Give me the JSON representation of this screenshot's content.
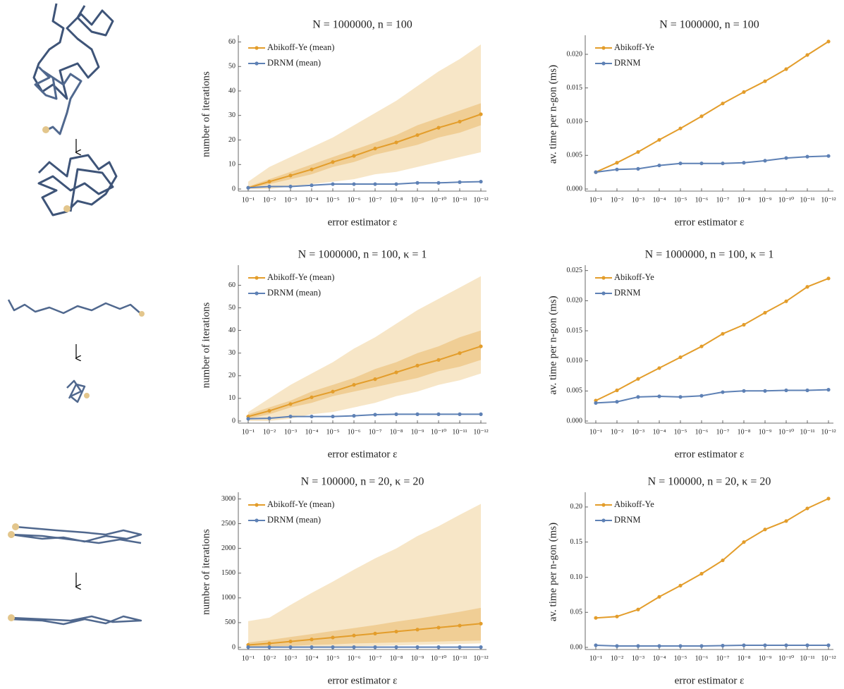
{
  "chart_data": [
    {
      "type": "line",
      "title": "N = 1000000,  n = 100",
      "xlabel": "error estimator ε",
      "ylabel": "number of iterations",
      "legend": "upper left",
      "categories": [
        "10⁻¹",
        "10⁻²",
        "10⁻³",
        "10⁻⁴",
        "10⁻⁵",
        "10⁻⁶",
        "10⁻⁷",
        "10⁻⁸",
        "10⁻⁹",
        "10⁻¹⁰",
        "10⁻¹¹",
        "10⁻¹²"
      ],
      "ylim": [
        0,
        61
      ],
      "yticks": [
        0,
        10,
        20,
        30,
        40,
        50,
        60
      ],
      "series": [
        {
          "name": "Abikoff-Ye (mean)",
          "color": "#e39d2b",
          "values": [
            0.5,
            3,
            5.5,
            8,
            11,
            13.5,
            16.5,
            19,
            22,
            25,
            27.5,
            30.5
          ],
          "bands": [
            {
              "color": "#f6e2bd",
              "lower": [
                0,
                0,
                1,
                2,
                3,
                4,
                6,
                7,
                9,
                11,
                13,
                15
              ],
              "upper": [
                3,
                9,
                13,
                17,
                21,
                26,
                31,
                36,
                42,
                48,
                53,
                59
              ]
            },
            {
              "color": "#eec98c",
              "lower": [
                0,
                2,
                4,
                6,
                9,
                11,
                14,
                16,
                18,
                21,
                23,
                26
              ],
              "upper": [
                1,
                4,
                7,
                10,
                13,
                16,
                19,
                22,
                26,
                29,
                32,
                35
              ]
            }
          ]
        },
        {
          "name": "DRNM (mean)",
          "color": "#5e81b5",
          "values": [
            0.5,
            1,
            1,
            1.5,
            2,
            2,
            2,
            2,
            2.5,
            2.5,
            2.8,
            3
          ]
        }
      ]
    },
    {
      "type": "line",
      "title": "N = 1000000,  n = 100",
      "xlabel": "error estimator ε",
      "ylabel": "av. time per n-gon (ms)",
      "legend": "upper left",
      "categories": [
        "10⁻¹",
        "10⁻²",
        "10⁻³",
        "10⁻⁴",
        "10⁻⁵",
        "10⁻⁶",
        "10⁻⁷",
        "10⁻⁸",
        "10⁻⁹",
        "10⁻¹⁰",
        "10⁻¹¹",
        "10⁻¹²"
      ],
      "ylim": [
        0,
        0.0222
      ],
      "yticks": [
        {
          "value": 0,
          "label": "0.000"
        },
        {
          "value": 0.005,
          "label": "0.005"
        },
        {
          "value": 0.01,
          "label": "0.010"
        },
        {
          "value": 0.015,
          "label": "0.015"
        },
        {
          "value": 0.02,
          "label": "0.020"
        }
      ],
      "series": [
        {
          "name": "Abikoff-Ye",
          "color": "#e39d2b",
          "values": [
            0.0025,
            0.0039,
            0.0055,
            0.0073,
            0.009,
            0.0108,
            0.0127,
            0.0144,
            0.016,
            0.0178,
            0.0199,
            0.0219
          ]
        },
        {
          "name": "DRNM",
          "color": "#5e81b5",
          "values": [
            0.0025,
            0.0029,
            0.003,
            0.0035,
            0.0038,
            0.0038,
            0.0038,
            0.0039,
            0.0042,
            0.0046,
            0.0048,
            0.0049
          ]
        }
      ]
    },
    {
      "type": "line",
      "title": "N = 1000000,  n = 100,  κ = 1",
      "xlabel": "error estimator ε",
      "ylabel": "number of iterations",
      "legend": "upper left",
      "categories": [
        "10⁻¹",
        "10⁻²",
        "10⁻³",
        "10⁻⁴",
        "10⁻⁵",
        "10⁻⁶",
        "10⁻⁷",
        "10⁻⁸",
        "10⁻⁹",
        "10⁻¹⁰",
        "10⁻¹¹",
        "10⁻¹²"
      ],
      "ylim": [
        0,
        67
      ],
      "yticks": [
        0,
        10,
        20,
        30,
        40,
        50,
        60
      ],
      "series": [
        {
          "name": "Abikoff-Ye (mean)",
          "color": "#e39d2b",
          "values": [
            2,
            4.5,
            7.5,
            10.5,
            13,
            16,
            18.5,
            21.5,
            24.5,
            27,
            30,
            33
          ],
          "bands": [
            {
              "color": "#f6e2bd",
              "lower": [
                0,
                0,
                1,
                3,
                4,
                6,
                8,
                11,
                13,
                16,
                18,
                21
              ],
              "upper": [
                4,
                10,
                16,
                21,
                26,
                32,
                37,
                43,
                49,
                54,
                59,
                64
              ]
            },
            {
              "color": "#eec98c",
              "lower": [
                1,
                3,
                6,
                8,
                11,
                13,
                15,
                17,
                19,
                22,
                24,
                27
              ],
              "upper": [
                3,
                6,
                9,
                13,
                16,
                19,
                23,
                26,
                30,
                33,
                37,
                40
              ]
            }
          ]
        },
        {
          "name": "DRNM (mean)",
          "color": "#5e81b5",
          "values": [
            1,
            1.2,
            2,
            2,
            2,
            2.3,
            2.8,
            3,
            3,
            3,
            3,
            3
          ]
        }
      ]
    },
    {
      "type": "line",
      "title": "N = 1000000,  n = 100,  κ = 1",
      "xlabel": "error estimator ε",
      "ylabel": "av. time per n-gon (ms)",
      "legend": "upper left",
      "categories": [
        "10⁻¹",
        "10⁻²",
        "10⁻³",
        "10⁻⁴",
        "10⁻⁵",
        "10⁻⁶",
        "10⁻⁷",
        "10⁻⁸",
        "10⁻⁹",
        "10⁻¹⁰",
        "10⁻¹¹",
        "10⁻¹²"
      ],
      "ylim": [
        0,
        0.0252
      ],
      "yticks": [
        {
          "value": 0,
          "label": "0.000"
        },
        {
          "value": 0.005,
          "label": "0.005"
        },
        {
          "value": 0.01,
          "label": "0.010"
        },
        {
          "value": 0.015,
          "label": "0.015"
        },
        {
          "value": 0.02,
          "label": "0.020"
        },
        {
          "value": 0.025,
          "label": "0.025"
        }
      ],
      "series": [
        {
          "name": "Abikoff-Ye",
          "color": "#e39d2b",
          "values": [
            0.0034,
            0.0051,
            0.007,
            0.0088,
            0.0106,
            0.0124,
            0.0145,
            0.016,
            0.018,
            0.0199,
            0.0223,
            0.0237
          ]
        },
        {
          "name": "DRNM",
          "color": "#5e81b5",
          "values": [
            0.003,
            0.0032,
            0.004,
            0.0041,
            0.004,
            0.0042,
            0.0048,
            0.005,
            0.005,
            0.0051,
            0.0051,
            0.0052
          ]
        }
      ]
    },
    {
      "type": "line",
      "title": "N = 100000,  n = 20,  κ = 20",
      "xlabel": "error estimator ε",
      "ylabel": "number of iterations",
      "legend": "upper left",
      "categories": [
        "10⁻¹",
        "10⁻²",
        "10⁻³",
        "10⁻⁴",
        "10⁻⁵",
        "10⁻⁶",
        "10⁻⁷",
        "10⁻⁸",
        "10⁻⁹",
        "10⁻¹⁰",
        "10⁻¹¹",
        "10⁻¹²"
      ],
      "ylim": [
        0,
        3050
      ],
      "yticks": [
        0,
        500,
        1000,
        1500,
        2000,
        2500,
        3000
      ],
      "series": [
        {
          "name": "Abikoff-Ye (mean)",
          "color": "#e39d2b",
          "values": [
            50,
            80,
            120,
            160,
            200,
            240,
            280,
            320,
            360,
            400,
            440,
            480
          ],
          "bands": [
            {
              "color": "#f6e2bd",
              "lower": [
                0,
                0,
                10,
                10,
                20,
                20,
                30,
                40,
                50,
                60,
                70,
                80
              ],
              "upper": [
                530,
                600,
                860,
                1100,
                1330,
                1570,
                1800,
                2000,
                2250,
                2450,
                2680,
                2900
              ]
            },
            {
              "color": "#eec98c",
              "lower": [
                10,
                20,
                30,
                50,
                60,
                80,
                90,
                100,
                110,
                120,
                130,
                140
              ],
              "upper": [
                100,
                150,
                210,
                270,
                330,
                390,
                450,
                520,
                580,
                650,
                720,
                800
              ]
            }
          ]
        },
        {
          "name": "DRNM (mean)",
          "color": "#5e81b5",
          "values": [
            5,
            5,
            5,
            5,
            5,
            5,
            5,
            5,
            5,
            5,
            5,
            5
          ]
        }
      ]
    },
    {
      "type": "line",
      "title": "N = 100000,  n = 20,  κ = 20",
      "xlabel": "error estimator ε",
      "ylabel": "av. time per n-gon (ms)",
      "legend": "upper left",
      "categories": [
        "10⁻¹",
        "10⁻²",
        "10⁻³",
        "10⁻⁴",
        "10⁻⁵",
        "10⁻⁶",
        "10⁻⁷",
        "10⁻⁸",
        "10⁻⁹",
        "10⁻¹⁰",
        "10⁻¹¹",
        "10⁻¹²"
      ],
      "ylim": [
        0,
        0.215
      ],
      "yticks": [
        {
          "value": 0,
          "label": "0.00"
        },
        {
          "value": 0.05,
          "label": "0.05"
        },
        {
          "value": 0.1,
          "label": "0.10"
        },
        {
          "value": 0.15,
          "label": "0.15"
        },
        {
          "value": 0.2,
          "label": "0.20"
        }
      ],
      "series": [
        {
          "name": "Abikoff-Ye",
          "color": "#e39d2b",
          "values": [
            0.042,
            0.044,
            0.054,
            0.072,
            0.088,
            0.105,
            0.124,
            0.15,
            0.168,
            0.18,
            0.198,
            0.212
          ]
        },
        {
          "name": "DRNM",
          "color": "#5e81b5",
          "values": [
            0.003,
            0.002,
            0.002,
            0.002,
            0.002,
            0.002,
            0.0025,
            0.003,
            0.003,
            0.003,
            0.003,
            0.003
          ]
        }
      ]
    }
  ]
}
